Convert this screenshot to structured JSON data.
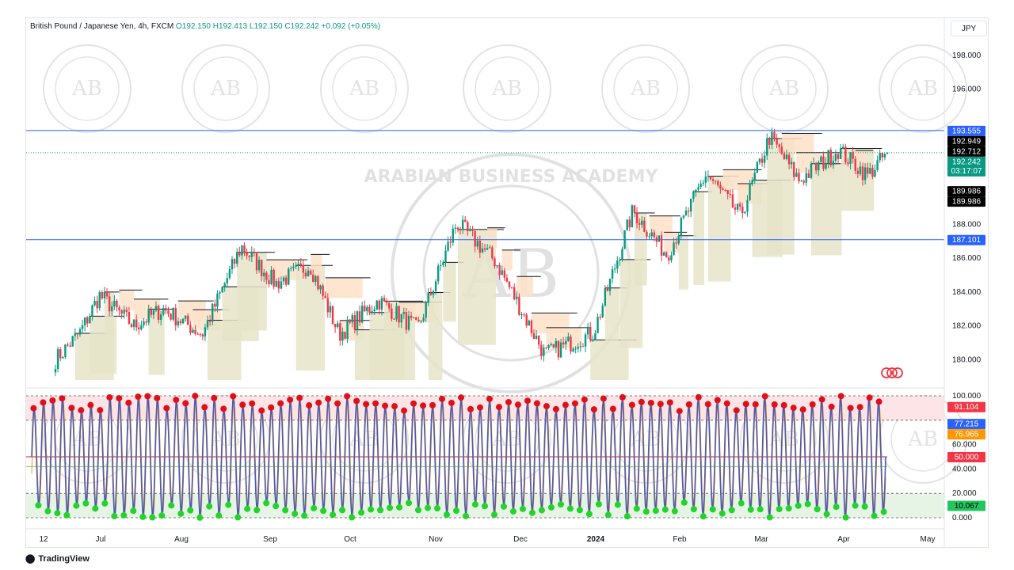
{
  "header": {
    "symbol": "British Pound / Japanese Yen, 4h, FXCM",
    "open": "O192.150",
    "high": "H192.413",
    "low": "L192.150",
    "close": "C192.242",
    "change": "+0.092 (+0.05%)"
  },
  "currency": "JPY",
  "footer": {
    "brand": "TradingView"
  },
  "watermark": "ARABIAN BUSINESS ACADEMY",
  "colors": {
    "up": "#089981",
    "down": "#f23645",
    "blue": "#2962ff",
    "osc_line": "#4a5bb8",
    "osc_orange": "#ff9800",
    "ob_fill": "#fde4e6",
    "os_fill": "#e6f4e6",
    "supply": "#fde0c8",
    "demand": "#e6e4c8"
  },
  "chart_data": [
    {
      "type": "candlestick",
      "title": "British Pound / Japanese Yen, 4h, FXCM",
      "x_labels": [
        "12",
        "Jul",
        "Aug",
        "Sep",
        "Oct",
        "Nov",
        "Dec",
        "2024",
        "Feb",
        "Mar",
        "Apr",
        "May"
      ],
      "y_ticks": [
        "198.000",
        "196.000",
        "188.000",
        "186.000",
        "184.000",
        "182.000",
        "180.000"
      ],
      "ylim": [
        178.8,
        199.4
      ],
      "trend_x": [
        0,
        5,
        9,
        16,
        22,
        30,
        38,
        45,
        52,
        58,
        66,
        74,
        82,
        90,
        100,
        110,
        118,
        125,
        133,
        140,
        146,
        152,
        160,
        166,
        170
      ],
      "trend_y": [
        180.0,
        181.6,
        183.8,
        182.0,
        183.0,
        181.5,
        186.7,
        184.5,
        185.6,
        181.5,
        183.5,
        181.8,
        188.1,
        185.8,
        180.3,
        181.6,
        188.8,
        186.2,
        191.0,
        188.5,
        193.2,
        190.6,
        192.4,
        190.9,
        192.242
      ],
      "horizontal_lines": [
        193.555,
        187.101
      ],
      "last_price": 192.242,
      "price_labels": [
        {
          "value": 193.555,
          "text": "193.555",
          "color": "#2962ff",
          "text_color": "#ffffff"
        },
        {
          "value": 192.949,
          "text": "192.949",
          "color": "#000000",
          "text_color": "#ffffff"
        },
        {
          "value": 192.712,
          "text": "192.712",
          "color": "#000000",
          "text_color": "#ffffff"
        },
        {
          "value": 192.242,
          "text": "192.242",
          "text2": "03:17:07",
          "color": "#089981",
          "text_color": "#ffffff"
        },
        {
          "value": 189.986,
          "text": "189.986",
          "color": "#000000",
          "text_color": "#ffffff"
        },
        {
          "value": 189.986,
          "text": "189.986",
          "color": "#000000",
          "text_color": "#ffffff"
        },
        {
          "value": 187.101,
          "text": "187.101",
          "color": "#2962ff",
          "text_color": "#ffffff"
        }
      ]
    },
    {
      "type": "line",
      "y_ticks": [
        "100.000",
        "60.000",
        "40.000",
        "20.000",
        "0.000"
      ],
      "ylim": [
        0,
        100
      ],
      "levels": [
        80,
        50,
        20
      ],
      "cycle_count": 90,
      "last_value": 91.104,
      "price_labels": [
        {
          "value": 91.104,
          "text": "91.104",
          "color": "#f23645",
          "text_color": "#ffffff"
        },
        {
          "value": 77.215,
          "text": "77.215",
          "color": "#2962ff",
          "text_color": "#ffffff"
        },
        {
          "value": 76.965,
          "text": "76.965",
          "color": "#ff9800",
          "text_color": "#ffffff"
        },
        {
          "value": 50.0,
          "text": "50.000",
          "color": "#f23645",
          "text_color": "#ffffff"
        },
        {
          "value": 10.067,
          "text": "10.067",
          "color": "#22c55e",
          "text_color": "#000000"
        }
      ]
    }
  ]
}
